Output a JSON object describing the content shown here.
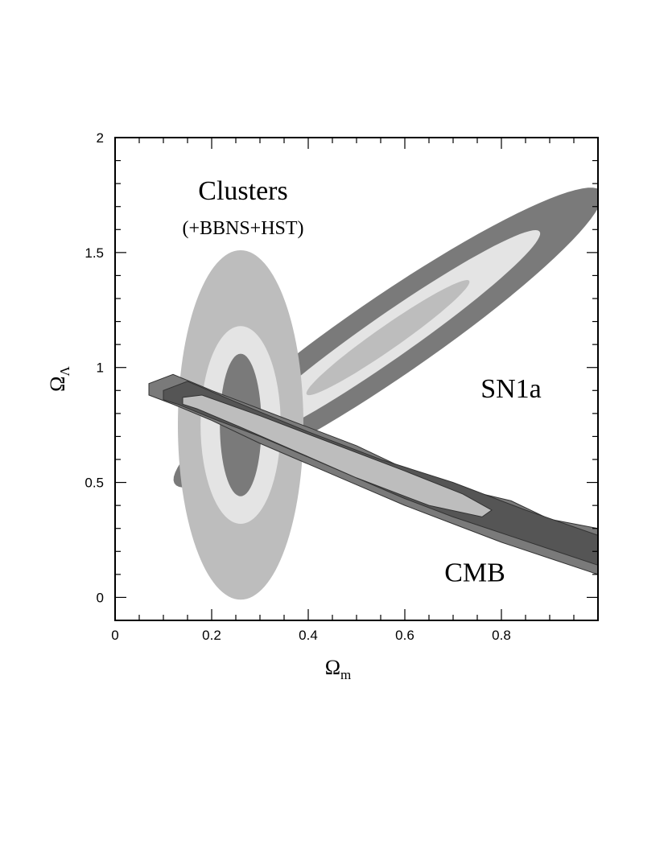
{
  "chart_data": {
    "type": "contour",
    "xlabel": "Ω",
    "xlabel_sub": "m",
    "ylabel": "Ω",
    "ylabel_sub": "Λ",
    "xlim": [
      0,
      1
    ],
    "ylim": [
      -0.1,
      2
    ],
    "x_ticks": [
      0,
      0.2,
      0.4,
      0.6,
      0.8
    ],
    "x_tick_labels": [
      "0",
      "0.2",
      "0.4",
      "0.6",
      "0.8"
    ],
    "y_ticks": [
      0,
      0.5,
      1,
      1.5,
      2
    ],
    "y_tick_labels": [
      "0",
      "0.5",
      "1",
      "1.5",
      "2"
    ],
    "colors": {
      "dark": "#7a7a7a",
      "mid": "#bdbdbd",
      "light": "#e4e4e4",
      "darkest": "#555555"
    },
    "regions": [
      {
        "label": "SN1a",
        "shape": "ellipse",
        "center": [
          0.565,
          1.13
        ],
        "slope": 1.5,
        "levels": [
          {
            "color": "dark",
            "semi_major": 0.78,
            "semi_minor": 0.12
          },
          {
            "color": "light",
            "semi_major": 0.56,
            "semi_minor": 0.065
          },
          {
            "color": "mid",
            "semi_major": 0.3,
            "semi_minor": 0.035
          }
        ]
      },
      {
        "label": "Clusters",
        "sublabel": "(+BBNS+HST)",
        "shape": "axis-ellipse",
        "center": [
          0.26,
          0.75
        ],
        "levels": [
          {
            "color": "mid",
            "rx": 0.13,
            "ry": 0.76
          },
          {
            "color": "light",
            "rx": 0.083,
            "ry": 0.43
          },
          {
            "color": "dark",
            "rx": 0.043,
            "ry": 0.31
          }
        ]
      },
      {
        "label": "CMB",
        "shape": "band",
        "levels": [
          {
            "color": "dark",
            "outer": [
              [
                0.07,
                0.93
              ],
              [
                0.12,
                0.97
              ],
              [
                0.2,
                0.9
              ],
              [
                0.35,
                0.78
              ],
              [
                0.5,
                0.66
              ],
              [
                0.6,
                0.56
              ],
              [
                0.7,
                0.48
              ],
              [
                0.82,
                0.42
              ],
              [
                0.9,
                0.34
              ],
              [
                1.0,
                0.3
              ],
              [
                1.0,
                0.1
              ],
              [
                0.9,
                0.17
              ],
              [
                0.8,
                0.24
              ],
              [
                0.7,
                0.32
              ],
              [
                0.6,
                0.4
              ],
              [
                0.5,
                0.49
              ],
              [
                0.4,
                0.58
              ],
              [
                0.3,
                0.67
              ],
              [
                0.2,
                0.77
              ],
              [
                0.12,
                0.84
              ],
              [
                0.07,
                0.88
              ]
            ]
          },
          {
            "color": "darkest",
            "outer": [
              [
                0.1,
                0.9
              ],
              [
                0.15,
                0.94
              ],
              [
                0.25,
                0.85
              ],
              [
                0.4,
                0.72
              ],
              [
                0.55,
                0.6
              ],
              [
                0.7,
                0.5
              ],
              [
                0.85,
                0.38
              ],
              [
                1.0,
                0.27
              ],
              [
                1.0,
                0.14
              ],
              [
                0.9,
                0.21
              ],
              [
                0.8,
                0.28
              ],
              [
                0.7,
                0.35
              ],
              [
                0.6,
                0.43
              ],
              [
                0.5,
                0.52
              ],
              [
                0.4,
                0.61
              ],
              [
                0.3,
                0.7
              ],
              [
                0.2,
                0.78
              ],
              [
                0.13,
                0.84
              ],
              [
                0.1,
                0.86
              ]
            ]
          },
          {
            "color": "mid",
            "outer": [
              [
                0.14,
                0.87
              ],
              [
                0.18,
                0.88
              ],
              [
                0.3,
                0.79
              ],
              [
                0.45,
                0.67
              ],
              [
                0.6,
                0.55
              ],
              [
                0.72,
                0.45
              ],
              [
                0.78,
                0.38
              ],
              [
                0.76,
                0.35
              ],
              [
                0.65,
                0.4
              ],
              [
                0.5,
                0.52
              ],
              [
                0.38,
                0.63
              ],
              [
                0.26,
                0.74
              ],
              [
                0.17,
                0.82
              ],
              [
                0.14,
                0.84
              ]
            ]
          }
        ]
      }
    ],
    "annotations": [
      {
        "text": "Clusters",
        "x": 0.265,
        "y": 1.73,
        "size": "large"
      },
      {
        "text": "(+BBNS+HST)",
        "x": 0.265,
        "y": 1.58,
        "size": "small"
      },
      {
        "text": "SN1a",
        "x": 0.82,
        "y": 0.87,
        "size": "large"
      },
      {
        "text": "CMB",
        "x": 0.745,
        "y": 0.07,
        "size": "large"
      }
    ]
  }
}
